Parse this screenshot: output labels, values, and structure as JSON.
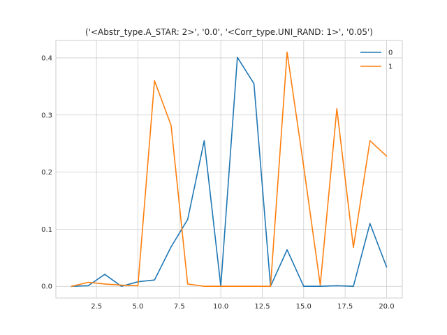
{
  "chart_data": {
    "type": "line",
    "title": "('<Abstr_type.A_STAR: 2>', '0.0', '<Corr_type.UNI_RAND: 1>', '0.05')",
    "xlabel": "",
    "ylabel": "",
    "x": [
      1,
      2,
      3,
      4,
      5,
      6,
      7,
      8,
      9,
      10,
      11,
      12,
      13,
      14,
      15,
      16,
      17,
      18,
      19,
      20
    ],
    "series": [
      {
        "name": "0",
        "color": "#1f77b4",
        "values": [
          0.0,
          0.001,
          0.021,
          0.0,
          0.008,
          0.011,
          0.069,
          0.117,
          0.255,
          0.0,
          0.401,
          0.355,
          0.0,
          0.064,
          0.0,
          0.0,
          0.001,
          0.0,
          0.11,
          0.034
        ]
      },
      {
        "name": "1",
        "color": "#ff7f0e",
        "values": [
          0.0,
          0.007,
          0.004,
          0.002,
          0.001,
          0.36,
          0.282,
          0.004,
          0.0,
          0.0,
          0.0,
          0.0,
          0.0,
          0.41,
          0.21,
          0.002,
          0.311,
          0.068,
          0.255,
          0.228
        ]
      }
    ],
    "xlim": [
      0.05,
      20.95
    ],
    "ylim": [
      -0.0205,
      0.4305
    ],
    "xticks": [
      2.5,
      5.0,
      7.5,
      10.0,
      12.5,
      15.0,
      17.5,
      20.0
    ],
    "xtick_labels": [
      "2.5",
      "5.0",
      "7.5",
      "10.0",
      "12.5",
      "15.0",
      "17.5",
      "20.0"
    ],
    "yticks": [
      0.0,
      0.1,
      0.2,
      0.3,
      0.4
    ],
    "ytick_labels": [
      "0.0",
      "0.1",
      "0.2",
      "0.3",
      "0.4"
    ],
    "grid": true,
    "legend_position": "top-right"
  }
}
